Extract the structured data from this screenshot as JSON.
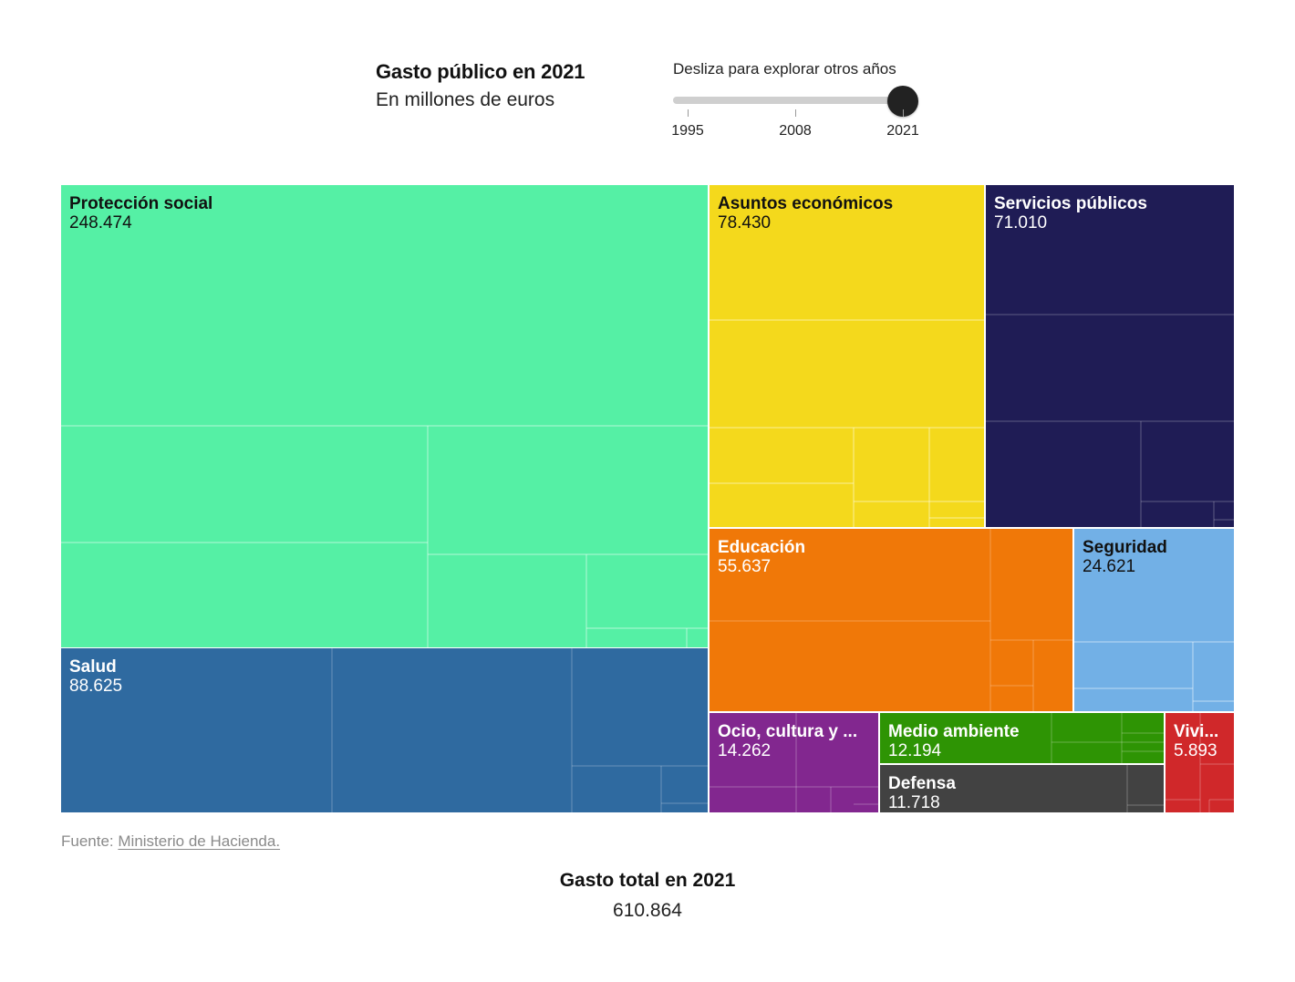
{
  "header": {
    "title": "Gasto público en 2021",
    "subtitle": "En millones de euros"
  },
  "slider": {
    "label": "Desliza para explorar otros años",
    "ticks": [
      "1995",
      "2008",
      "2021"
    ],
    "min_year": 1995,
    "max_year": 2021,
    "selected_year": 2021
  },
  "chart_data": {
    "type": "treemap",
    "title": "Gasto público en 2021",
    "unit": "En millones de euros",
    "year": 2021,
    "categories": [
      {
        "id": "proteccion",
        "label": "Protección social",
        "value_label": "248.474",
        "value": 248474,
        "color": "#55f0a5",
        "text_color": "#111111"
      },
      {
        "id": "salud",
        "label": "Salud",
        "value_label": "88.625",
        "value": 88625,
        "color": "#2f6aa0",
        "text_color": "#ffffff"
      },
      {
        "id": "asuntos",
        "label": "Asuntos económicos",
        "value_label": "78.430",
        "value": 78430,
        "color": "#f4d91c",
        "text_color": "#111111"
      },
      {
        "id": "servicios",
        "label": "Servicios públicos",
        "value_label": "71.010",
        "value": 71010,
        "color": "#1f1c55",
        "text_color": "#ffffff"
      },
      {
        "id": "educacion",
        "label": "Educación",
        "value_label": "55.637",
        "value": 55637,
        "color": "#f07808",
        "text_color": "#ffffff"
      },
      {
        "id": "seguridad",
        "label": "Seguridad",
        "value_label": "24.621",
        "value": 24621,
        "color": "#72b0e6",
        "text_color": "#111111"
      },
      {
        "id": "ocio",
        "label": "Ocio, cultura y ...",
        "value_label": "14.262",
        "value": 14262,
        "color": "#82278f",
        "text_color": "#ffffff"
      },
      {
        "id": "medio",
        "label": "Medio ambiente",
        "value_label": "12.194",
        "value": 12194,
        "color": "#2e9404",
        "text_color": "#ffffff"
      },
      {
        "id": "defensa",
        "label": "Defensa",
        "value_label": "11.718",
        "value": 11718,
        "color": "#424242",
        "text_color": "#ffffff"
      },
      {
        "id": "vivienda",
        "label": "Vivi...",
        "value_label": "5.893",
        "value": 5893,
        "color": "#d0282a",
        "text_color": "#ffffff"
      }
    ]
  },
  "source": {
    "prefix": "Fuente:",
    "link_text": "Ministerio de Hacienda."
  },
  "total": {
    "title": "Gasto total en 2021",
    "value": "610.864"
  }
}
